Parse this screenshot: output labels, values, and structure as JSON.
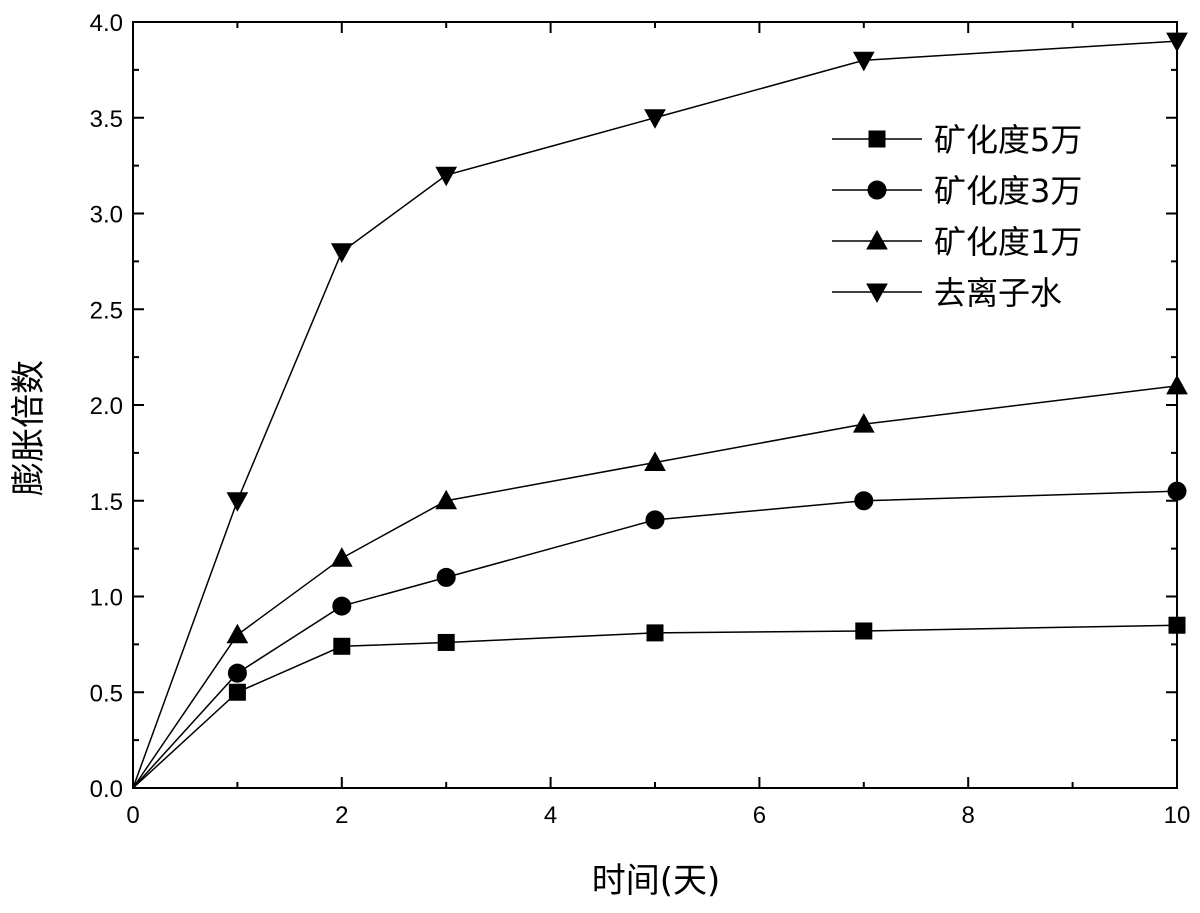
{
  "chart_data": {
    "type": "line",
    "title": "",
    "xlabel": "时间(天)",
    "ylabel": "膨胀倍数",
    "xlim": [
      0,
      10
    ],
    "ylim": [
      0,
      4.0
    ],
    "x_ticks": [
      "0",
      "2",
      "4",
      "6",
      "8",
      "10"
    ],
    "y_ticks": [
      "0.0",
      "0.5",
      "1.0",
      "1.5",
      "2.0",
      "2.5",
      "3.0",
      "3.5",
      "4.0"
    ],
    "grid": false,
    "legend_position": "top-right",
    "x": [
      0,
      1,
      2,
      3,
      5,
      7,
      10
    ],
    "series": [
      {
        "name": "矿化度5万",
        "marker": "square",
        "values": [
          0,
          0.5,
          0.74,
          0.76,
          0.81,
          0.82,
          0.85
        ]
      },
      {
        "name": "矿化度3万",
        "marker": "circle",
        "values": [
          0,
          0.6,
          0.95,
          1.1,
          1.4,
          1.5,
          1.55
        ]
      },
      {
        "name": "矿化度1万",
        "marker": "triangle-up",
        "values": [
          0,
          0.8,
          1.2,
          1.5,
          1.7,
          1.9,
          2.1
        ]
      },
      {
        "name": "去离子水",
        "marker": "triangle-down",
        "values": [
          0,
          1.5,
          2.8,
          3.2,
          3.5,
          3.8,
          3.9
        ]
      }
    ],
    "colors": {
      "line": "#000000",
      "marker": "#000000"
    }
  }
}
